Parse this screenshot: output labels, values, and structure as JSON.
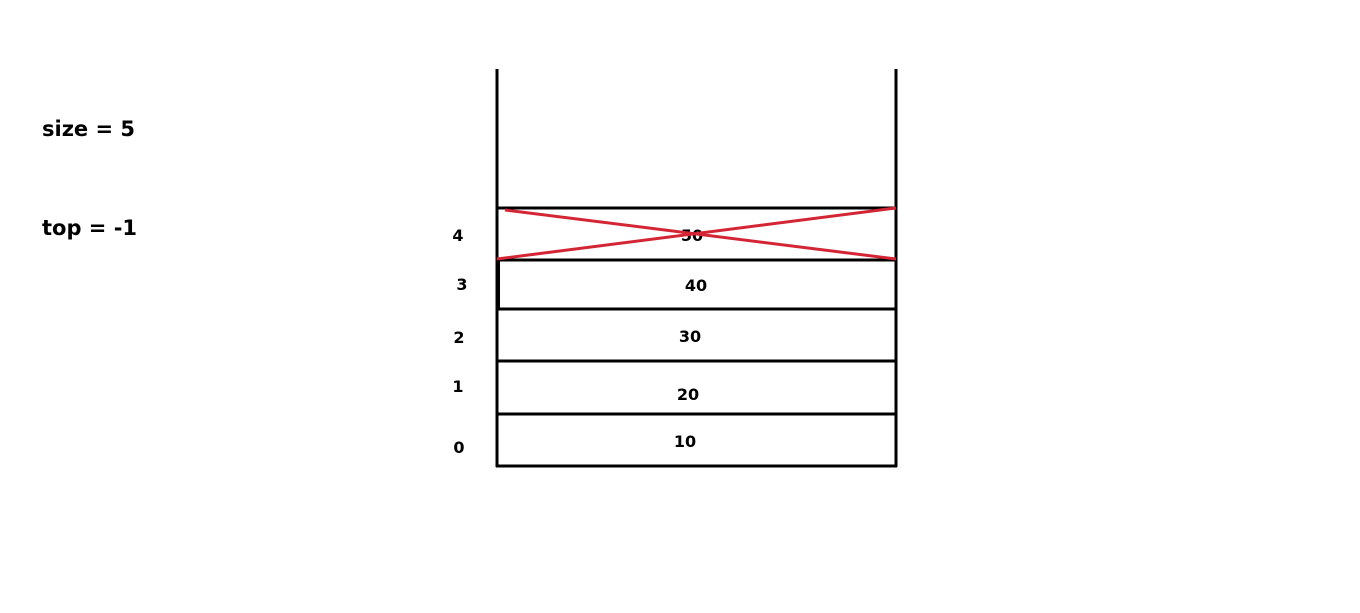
{
  "variables": {
    "size": "size = 5",
    "top": "top = -1"
  },
  "stack": {
    "cells": [
      {
        "index": "0",
        "value": "10",
        "crossed": false
      },
      {
        "index": "1",
        "value": "20",
        "crossed": false
      },
      {
        "index": "2",
        "value": "30",
        "crossed": false
      },
      {
        "index": "3",
        "value": "40",
        "crossed": false
      },
      {
        "index": "4",
        "value": "50",
        "crossed": true
      }
    ]
  },
  "colors": {
    "line": "#000000",
    "cross": "#d42535"
  }
}
